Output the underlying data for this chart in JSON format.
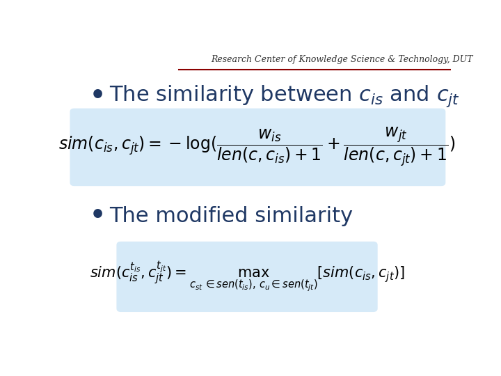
{
  "background_color": "#ffffff",
  "header_text": "Research Center of Knowledge Science & Technology, DUT",
  "header_fontsize": 9,
  "header_color": "#333333",
  "header_line_color": "#8B0000",
  "bullet_color": "#1F3864",
  "bullet1_text": "The similarity between $c_{is}$ and $c_{jt}$",
  "bullet1_fontsize": 22,
  "formula1_box_color": "#D6EAF8",
  "formula1": "$sim(c_{is}, c_{jt}) = -\\log(\\dfrac{w_{is}}{len(c, c_{is})+1} + \\dfrac{w_{jt}}{len(c, c_{jt})+1})$",
  "formula1_fontsize": 17,
  "bullet2_text": "The modified similarity",
  "bullet2_fontsize": 22,
  "formula2_box_color": "#D6EAF8",
  "formula2": "$sim(c_{is}^{t_{is}}, c_{jt}^{t_{jt}}) = \\max_{c_{st} \\in sen(t_{is}),\\, c_u \\in sen(t_{jt})} [sim(c_{is}, c_{jt})]$",
  "formula2_fontsize": 15
}
